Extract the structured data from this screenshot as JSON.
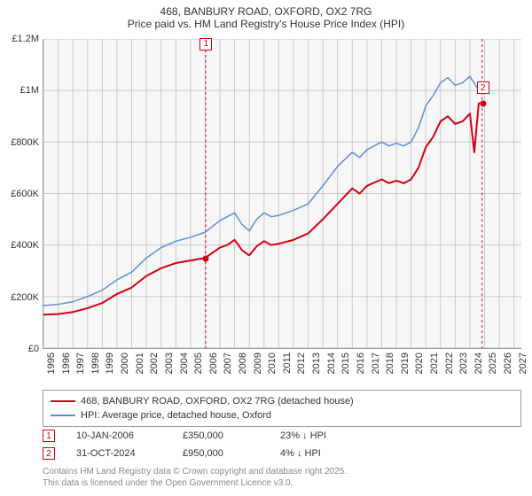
{
  "title": {
    "line1": "468, BANBURY ROAD, OXFORD, OX2 7RG",
    "line2": "Price paid vs. HM Land Registry's House Price Index (HPI)"
  },
  "chart": {
    "type": "line",
    "background_color": "#f7f7f8",
    "grid_color": "#c8c8cc",
    "border_color": "#999999",
    "xlim": [
      1995,
      2027.5
    ],
    "ylim": [
      0,
      1200000
    ],
    "ytick_step": 200000,
    "yticks": [
      {
        "v": 0,
        "label": "£0"
      },
      {
        "v": 200000,
        "label": "£200K"
      },
      {
        "v": 400000,
        "label": "£400K"
      },
      {
        "v": 600000,
        "label": "£600K"
      },
      {
        "v": 800000,
        "label": "£800K"
      },
      {
        "v": 1000000,
        "label": "£1M"
      },
      {
        "v": 1200000,
        "label": "£1.2M"
      }
    ],
    "xticks": [
      1995,
      1996,
      1997,
      1998,
      1999,
      2000,
      2001,
      2002,
      2003,
      2004,
      2005,
      2006,
      2007,
      2008,
      2009,
      2010,
      2011,
      2012,
      2013,
      2014,
      2015,
      2016,
      2017,
      2018,
      2019,
      2020,
      2021,
      2022,
      2023,
      2024,
      2025,
      2026,
      2027
    ],
    "series": [
      {
        "name": "price_paid",
        "label": "468, BANBURY ROAD, OXFORD, OX2 7RG (detached house)",
        "color": "#d4000f",
        "line_width": 2,
        "data": [
          [
            1995,
            130000
          ],
          [
            1996,
            132000
          ],
          [
            1997,
            140000
          ],
          [
            1998,
            155000
          ],
          [
            1999,
            175000
          ],
          [
            2000,
            210000
          ],
          [
            2001,
            235000
          ],
          [
            2002,
            280000
          ],
          [
            2003,
            310000
          ],
          [
            2004,
            330000
          ],
          [
            2005,
            340000
          ],
          [
            2006,
            350000
          ],
          [
            2007,
            390000
          ],
          [
            2007.5,
            400000
          ],
          [
            2008,
            420000
          ],
          [
            2008.5,
            380000
          ],
          [
            2009,
            360000
          ],
          [
            2009.5,
            395000
          ],
          [
            2010,
            415000
          ],
          [
            2010.5,
            400000
          ],
          [
            2011,
            405000
          ],
          [
            2012,
            420000
          ],
          [
            2013,
            445000
          ],
          [
            2014,
            500000
          ],
          [
            2015,
            560000
          ],
          [
            2016,
            620000
          ],
          [
            2016.5,
            600000
          ],
          [
            2017,
            630000
          ],
          [
            2018,
            655000
          ],
          [
            2018.5,
            640000
          ],
          [
            2019,
            650000
          ],
          [
            2019.5,
            640000
          ],
          [
            2020,
            655000
          ],
          [
            2020.5,
            700000
          ],
          [
            2021,
            780000
          ],
          [
            2021.5,
            820000
          ],
          [
            2022,
            880000
          ],
          [
            2022.5,
            900000
          ],
          [
            2023,
            870000
          ],
          [
            2023.5,
            880000
          ],
          [
            2024,
            910000
          ],
          [
            2024.3,
            760000
          ],
          [
            2024.6,
            950000
          ],
          [
            2024.83,
            950000
          ]
        ]
      },
      {
        "name": "hpi",
        "label": "HPI: Average price, detached house, Oxford",
        "color": "#5b8fd6",
        "line_width": 1.5,
        "data": [
          [
            1995,
            165000
          ],
          [
            1996,
            170000
          ],
          [
            1997,
            180000
          ],
          [
            1998,
            200000
          ],
          [
            1999,
            225000
          ],
          [
            2000,
            265000
          ],
          [
            2001,
            295000
          ],
          [
            2002,
            350000
          ],
          [
            2003,
            390000
          ],
          [
            2004,
            415000
          ],
          [
            2005,
            430000
          ],
          [
            2006,
            450000
          ],
          [
            2007,
            495000
          ],
          [
            2007.5,
            510000
          ],
          [
            2008,
            525000
          ],
          [
            2008.5,
            480000
          ],
          [
            2009,
            455000
          ],
          [
            2009.5,
            500000
          ],
          [
            2010,
            525000
          ],
          [
            2010.5,
            510000
          ],
          [
            2011,
            515000
          ],
          [
            2012,
            535000
          ],
          [
            2013,
            560000
          ],
          [
            2014,
            630000
          ],
          [
            2015,
            705000
          ],
          [
            2016,
            760000
          ],
          [
            2016.5,
            740000
          ],
          [
            2017,
            770000
          ],
          [
            2018,
            800000
          ],
          [
            2018.5,
            785000
          ],
          [
            2019,
            795000
          ],
          [
            2019.5,
            785000
          ],
          [
            2020,
            800000
          ],
          [
            2020.5,
            855000
          ],
          [
            2021,
            940000
          ],
          [
            2021.5,
            980000
          ],
          [
            2022,
            1030000
          ],
          [
            2022.5,
            1050000
          ],
          [
            2023,
            1020000
          ],
          [
            2023.5,
            1030000
          ],
          [
            2024,
            1055000
          ],
          [
            2024.5,
            1010000
          ],
          [
            2024.83,
            990000
          ]
        ]
      }
    ],
    "vertical_markers": [
      {
        "x": 2006.03,
        "color": "#d4000f"
      },
      {
        "x": 2024.83,
        "color": "#d4000f"
      }
    ],
    "point_markers": [
      {
        "n": "1",
        "x": 2006.03,
        "y": 350000,
        "dot_color": "#d4000f",
        "badge_y": 1180000
      },
      {
        "n": "2",
        "x": 2024.83,
        "y": 950000,
        "dot_color": "#d4000f",
        "badge_y": 1010000
      }
    ]
  },
  "legend": {
    "items": [
      {
        "color": "#d4000f",
        "width": 2,
        "label": "468, BANBURY ROAD, OXFORD, OX2 7RG (detached house)"
      },
      {
        "color": "#5b8fd6",
        "width": 1.5,
        "label": "HPI: Average price, detached house, Oxford"
      }
    ]
  },
  "marker_table": {
    "rows": [
      {
        "n": "1",
        "date": "10-JAN-2006",
        "price": "£350,000",
        "delta": "23% ↓ HPI",
        "color": "#d4000f"
      },
      {
        "n": "2",
        "date": "31-OCT-2024",
        "price": "£950,000",
        "delta": "4% ↓ HPI",
        "color": "#d4000f"
      }
    ]
  },
  "footer": {
    "line1": "Contains HM Land Registry data © Crown copyright and database right 2025.",
    "line2": "This data is licensed under the Open Government Licence v3.0."
  },
  "fontsize": {
    "title": 12,
    "axis": 11,
    "legend": 11,
    "footer": 10
  }
}
